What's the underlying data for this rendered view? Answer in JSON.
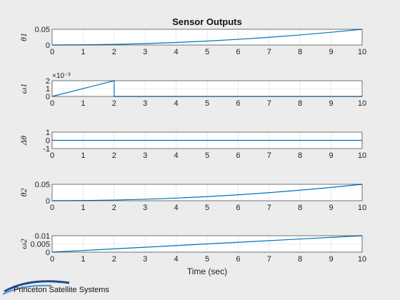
{
  "figure": {
    "title": "Sensor Outputs",
    "xlabel": "Time (sec)",
    "logo_text": "Princeton Satellite Systems"
  },
  "colors": {
    "background": "#ececec",
    "axes_face": "#ffffff",
    "line": "#0072bd",
    "grid": "#dcdcdc",
    "text": "#222222"
  },
  "chart_data": [
    {
      "type": "line",
      "title": "Sensor Outputs",
      "ylabel": "θ1",
      "xlabel": "",
      "xlim": [
        0,
        10
      ],
      "ylim": [
        0,
        0.05
      ],
      "xticks": [
        "0",
        "1",
        "2",
        "3",
        "4",
        "5",
        "6",
        "7",
        "8",
        "9",
        "10"
      ],
      "yticks": [
        {
          "v": 0,
          "t": "0"
        },
        {
          "v": 0.05,
          "t": "0.05"
        }
      ],
      "grid": true,
      "series": [
        {
          "x": [
            0,
            1,
            2,
            3,
            4,
            5,
            6,
            7,
            8,
            9,
            10
          ],
          "y": [
            0,
            0.0005,
            0.002,
            0.0045,
            0.008,
            0.0125,
            0.018,
            0.0245,
            0.032,
            0.0405,
            0.05
          ]
        }
      ]
    },
    {
      "type": "line",
      "ylabel": "ω1",
      "xlabel": "",
      "y_exponent": "×10⁻³",
      "xlim": [
        0,
        10
      ],
      "ylim": [
        0,
        0.002
      ],
      "xticks": [
        "0",
        "1",
        "2",
        "3",
        "4",
        "5",
        "6",
        "7",
        "8",
        "9",
        "10"
      ],
      "yticks": [
        {
          "v": 0,
          "t": "0"
        },
        {
          "v": 0.001,
          "t": "1"
        },
        {
          "v": 0.002,
          "t": "2"
        }
      ],
      "grid": true,
      "series": [
        {
          "x": [
            0,
            2,
            2,
            10
          ],
          "y": [
            0,
            0.002,
            0,
            0
          ]
        }
      ]
    },
    {
      "type": "line",
      "ylabel": "Δθ",
      "xlabel": "",
      "xlim": [
        0,
        10
      ],
      "ylim": [
        -1,
        1
      ],
      "xticks": [
        "0",
        "1",
        "2",
        "3",
        "4",
        "5",
        "6",
        "7",
        "8",
        "9",
        "10"
      ],
      "yticks": [
        {
          "v": 1,
          "t": "1"
        },
        {
          "v": 0,
          "t": "0"
        },
        {
          "v": -1,
          "t": "-1"
        }
      ],
      "grid": true,
      "series": [
        {
          "x": [
            0,
            10
          ],
          "y": [
            0,
            0
          ]
        }
      ]
    },
    {
      "type": "line",
      "ylabel": "θ2",
      "xlabel": "",
      "xlim": [
        0,
        10
      ],
      "ylim": [
        0,
        0.05
      ],
      "xticks": [
        "0",
        "1",
        "2",
        "3",
        "4",
        "5",
        "6",
        "7",
        "8",
        "9",
        "10"
      ],
      "yticks": [
        {
          "v": 0,
          "t": "0"
        },
        {
          "v": 0.05,
          "t": "0.05"
        }
      ],
      "grid": true,
      "series": [
        {
          "x": [
            0,
            1,
            2,
            3,
            4,
            5,
            6,
            7,
            8,
            9,
            10
          ],
          "y": [
            0,
            0.0005,
            0.002,
            0.0045,
            0.008,
            0.0125,
            0.018,
            0.0245,
            0.032,
            0.0405,
            0.05
          ]
        }
      ]
    },
    {
      "type": "line",
      "ylabel": "ω2",
      "xlabel": "Time (sec)",
      "xlim": [
        0,
        10
      ],
      "ylim": [
        0,
        0.01
      ],
      "xticks": [
        "0",
        "1",
        "2",
        "3",
        "4",
        "5",
        "6",
        "7",
        "8",
        "9",
        "10"
      ],
      "yticks": [
        {
          "v": 0,
          "t": "0"
        },
        {
          "v": 0.005,
          "t": "0.005"
        },
        {
          "v": 0.01,
          "t": "0.01"
        }
      ],
      "grid": true,
      "series": [
        {
          "x": [
            0,
            10
          ],
          "y": [
            0,
            0.01
          ]
        }
      ]
    }
  ]
}
